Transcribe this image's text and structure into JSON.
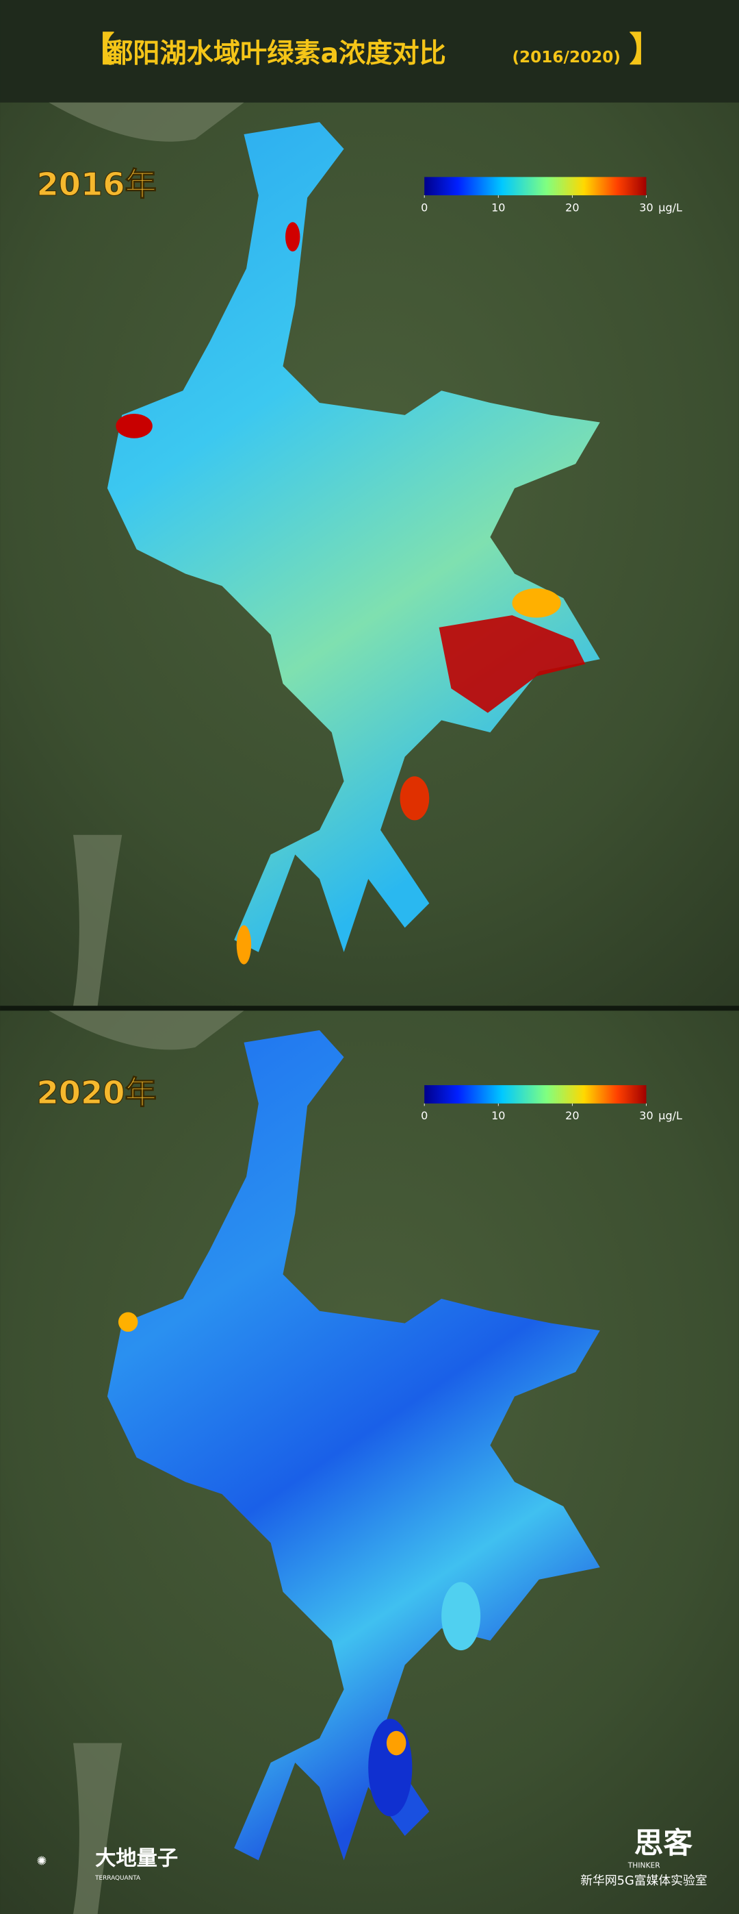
{
  "header": {
    "title": "鄱阳湖水域叶绿素a浓度对比",
    "years": "(2016/2020)"
  },
  "panels": [
    {
      "label": "2016年",
      "colorbar": {
        "lim": [
          0,
          30
        ],
        "ticks": [
          0,
          10,
          20,
          30
        ],
        "unit": "μg/L"
      }
    },
    {
      "label": "2020年",
      "colorbar": {
        "lim": [
          0,
          30
        ],
        "ticks": [
          0,
          10,
          20,
          30
        ],
        "unit": "μg/L"
      }
    }
  ],
  "credits": {
    "left": "大地量子",
    "left_sub": "TERRAQUANTA",
    "right": "思客",
    "right_sub": "THINKER",
    "right_note": "新华网5G富媒体实验室"
  }
}
